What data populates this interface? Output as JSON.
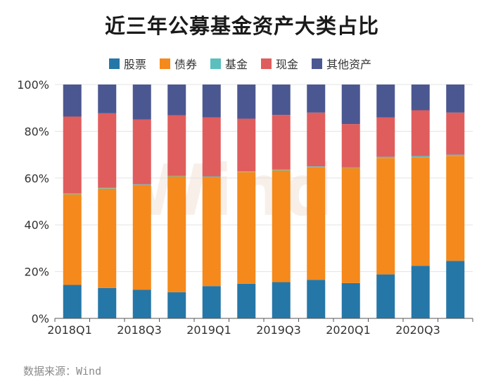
{
  "title": "近三年公募基金资产大类占比",
  "source": "数据来源：Wind",
  "watermark": "Wind",
  "chart_data": {
    "type": "bar",
    "stacked": true,
    "categories": [
      "2018Q1",
      "2018Q2",
      "2018Q3",
      "2018Q4",
      "2019Q1",
      "2019Q2",
      "2019Q3",
      "2019Q4",
      "2020Q1",
      "2020Q2",
      "2020Q3",
      "2020Q4"
    ],
    "x_tick_labels": [
      "2018Q1",
      "",
      "2018Q3",
      "",
      "2019Q1",
      "",
      "2019Q3",
      "",
      "2020Q1",
      "",
      "2020Q3",
      ""
    ],
    "ylim": [
      0,
      100
    ],
    "y_ticks": [
      0,
      20,
      40,
      60,
      80,
      100
    ],
    "y_tick_labels": [
      "0%",
      "20%",
      "40%",
      "60%",
      "80%",
      "100%"
    ],
    "grid": true,
    "legend_position": "top",
    "series": [
      {
        "name": "股票",
        "color": "#2577a8",
        "values": [
          14.3,
          13.0,
          12.2,
          11.2,
          13.8,
          14.8,
          15.5,
          16.5,
          15.1,
          18.8,
          22.5,
          24.6
        ]
      },
      {
        "name": "债券",
        "color": "#f5891b",
        "values": [
          38.8,
          42.5,
          44.8,
          49.5,
          46.6,
          47.8,
          47.8,
          48.2,
          49.2,
          49.8,
          46.4,
          44.9
        ]
      },
      {
        "name": "基金",
        "color": "#5bbfbe",
        "values": [
          0.3,
          0.3,
          0.3,
          0.3,
          0.3,
          0.3,
          0.3,
          0.3,
          0.3,
          0.5,
          0.5,
          0.5
        ]
      },
      {
        "name": "现金",
        "color": "#e05d5d",
        "values": [
          32.9,
          31.9,
          27.8,
          25.9,
          25.3,
          22.5,
          23.4,
          23.0,
          18.5,
          16.8,
          19.6,
          18.0
        ]
      },
      {
        "name": "其他资产",
        "color": "#4b5791",
        "values": [
          13.7,
          12.3,
          14.9,
          13.1,
          14.0,
          14.6,
          13.0,
          12.0,
          16.9,
          14.1,
          11.0,
          12.0
        ]
      }
    ]
  }
}
